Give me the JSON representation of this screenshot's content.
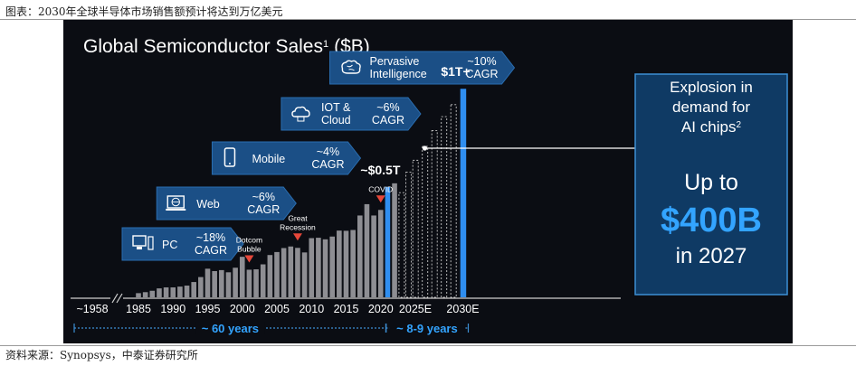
{
  "figure": {
    "title": "图表：2030年全球半导体市场销售额预计将达到万亿美元",
    "source": "资料来源：Synopsys，中泰证券研究所"
  },
  "colors": {
    "background": "#0b0d13",
    "bar_gray": "#8e8e93",
    "bar_blue": "#2f8ef0",
    "arrow_fill": "#1b4f86",
    "panel_bg": "#0f3a64",
    "panel_border": "#3d8fd4",
    "highlight": "#33a4ff",
    "marker_red": "#e6473a"
  },
  "chart_data": {
    "type": "bar",
    "title": "Global Semiconductor Sales",
    "title_sup": "1",
    "title_unit": "($B)",
    "x": [
      "~1958",
      "1985",
      "1986",
      "1987",
      "1988",
      "1989",
      "1990",
      "1991",
      "1992",
      "1993",
      "1994",
      "1995",
      "1996",
      "1997",
      "1998",
      "1999",
      "2000",
      "2001",
      "2002",
      "2003",
      "2004",
      "2005",
      "2006",
      "2007",
      "2008",
      "2009",
      "2010",
      "2011",
      "2012",
      "2013",
      "2014",
      "2015",
      "2016",
      "2017",
      "2018",
      "2019",
      "2020",
      "2021",
      "2022",
      "2023",
      "2024",
      "2025E",
      "2026E",
      "2027E",
      "2028E",
      "2029E",
      "2030E"
    ],
    "values": [
      0,
      21,
      26,
      33,
      45,
      50,
      50,
      54,
      59,
      77,
      102,
      144,
      132,
      137,
      126,
      149,
      204,
      139,
      141,
      166,
      213,
      228,
      248,
      256,
      249,
      226,
      298,
      300,
      292,
      306,
      336,
      335,
      339,
      412,
      469,
      412,
      440,
      556,
      574,
      527,
      630,
      690,
      760,
      840,
      910,
      970,
      1050
    ],
    "bar_kind": [
      "gray",
      "gray",
      "gray",
      "gray",
      "gray",
      "gray",
      "gray",
      "gray",
      "gray",
      "gray",
      "gray",
      "gray",
      "gray",
      "gray",
      "gray",
      "gray",
      "gray",
      "gray",
      "gray",
      "gray",
      "gray",
      "gray",
      "gray",
      "gray",
      "gray",
      "gray",
      "gray",
      "gray",
      "gray",
      "gray",
      "gray",
      "gray",
      "gray",
      "gray",
      "gray",
      "gray",
      "gray",
      "blue",
      "gray",
      "dashed",
      "dashed",
      "dashed",
      "dashed",
      "dashed",
      "dashed",
      "dashed",
      "blue"
    ],
    "ylim": [
      0,
      1100
    ],
    "tick_labels": [
      "~1958",
      "1985",
      "1990",
      "1995",
      "2000",
      "2005",
      "2010",
      "2015",
      "2020",
      "2025E",
      "2030E"
    ],
    "tick_index": [
      0,
      1,
      6,
      11,
      16,
      21,
      26,
      31,
      36,
      41,
      46
    ],
    "periods": [
      {
        "label": "~ 60 years",
        "from_index": 0,
        "to_index": 36
      },
      {
        "label": "~ 8-9 years",
        "from_index": 37,
        "to_index": 46
      }
    ],
    "events": [
      {
        "label_lines": [
          "Dotcom",
          "Bubble"
        ],
        "index": 17
      },
      {
        "label_lines": [
          "Great",
          "Recession"
        ],
        "index": 24
      },
      {
        "label_lines": [
          "COVID"
        ],
        "index": 36
      }
    ],
    "value_labels": [
      {
        "text": "~$0.5T",
        "index": 37
      },
      {
        "text": "$1T+",
        "index": 46
      }
    ],
    "eras": [
      {
        "icon": "pc-icon",
        "name_lines": [
          "PC"
        ],
        "cagr_lines": [
          "~18%",
          "CAGR"
        ],
        "start_index": 1
      },
      {
        "icon": "globe-icon",
        "name_lines": [
          "Web"
        ],
        "cagr_lines": [
          "~6%",
          "CAGR"
        ],
        "start_index": 6
      },
      {
        "icon": "phone-icon",
        "name_lines": [
          "Mobile"
        ],
        "cagr_lines": [
          "~4%",
          "CAGR"
        ],
        "start_index": 14
      },
      {
        "icon": "cloud-icon",
        "name_lines": [
          "IOT &",
          "Cloud"
        ],
        "cagr_lines": [
          "~6%",
          "CAGR"
        ],
        "start_index": 24
      },
      {
        "icon": "brain-icon",
        "name_lines": [
          "Pervasive",
          "Intelligence"
        ],
        "cagr_lines": [
          "~10%",
          "CAGR"
        ],
        "start_index": 31
      }
    ],
    "callout": {
      "heading_lines": [
        "Explosion in",
        "demand for"
      ],
      "heading_last": "AI chips",
      "heading_sup": "2",
      "lead": "Up to",
      "value": "$400B",
      "year": "in 2027",
      "target_index": 42
    }
  }
}
